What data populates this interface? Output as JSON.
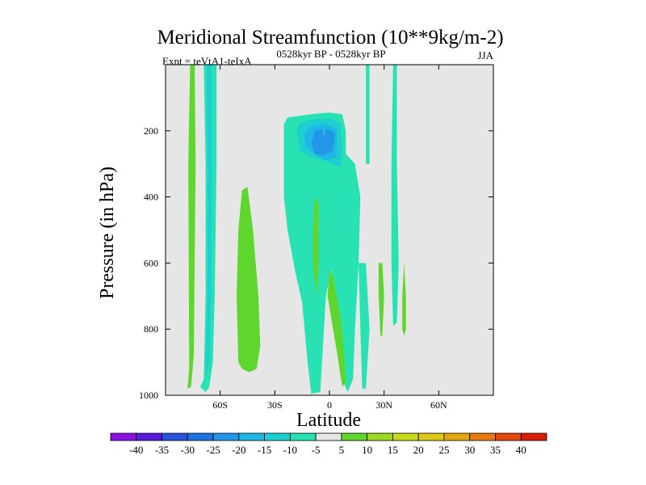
{
  "chart_data": {
    "type": "contour",
    "title": "Meridional Streamfunction (10**9kg/m-2)",
    "left_subtitle": "Expt = teVtA1-teIxA",
    "center_subtitle": "0528kyr BP - 0528kyr BP",
    "right_subtitle": "JJA",
    "xlabel": "Latitude",
    "ylabel": "Pressure (in hPa)",
    "xlim": [
      -90,
      90
    ],
    "ylim": [
      1000,
      0
    ],
    "x_ticks": [
      {
        "value": -60,
        "label": "60S"
      },
      {
        "value": -30,
        "label": "30S"
      },
      {
        "value": 0,
        "label": "0"
      },
      {
        "value": 30,
        "label": "30N"
      },
      {
        "value": 60,
        "label": "60N"
      }
    ],
    "y_ticks": [
      {
        "value": 200,
        "label": "200"
      },
      {
        "value": 400,
        "label": "400"
      },
      {
        "value": 600,
        "label": "600"
      },
      {
        "value": 800,
        "label": "800"
      },
      {
        "value": 1000,
        "label": "1000"
      }
    ],
    "colorbar": {
      "levels": [
        "-40",
        "-35",
        "-30",
        "-25",
        "-20",
        "-15",
        "-10",
        "-5",
        "5",
        "10",
        "15",
        "20",
        "25",
        "30",
        "35",
        "40"
      ],
      "colors": [
        "#8a14e0",
        "#5a1cd8",
        "#2a52d8",
        "#1f73e0",
        "#2396e8",
        "#1fb7e6",
        "#1ecfd2",
        "#28e2b4",
        "#e6e6e6",
        "#5fd62e",
        "#9ad822",
        "#c6d81e",
        "#dcc818",
        "#e6a612",
        "#e67a10",
        "#e24a0c",
        "#d81e08"
      ]
    },
    "regions": [
      {
        "name": "sh-polar-narrow-positive",
        "level": "5",
        "pts": [
          [
            -78,
            980
          ],
          [
            -77,
            920
          ],
          [
            -77.5,
            300
          ],
          [
            -76.5,
            0
          ],
          [
            -74,
            0
          ],
          [
            -73.5,
            300
          ],
          [
            -74.5,
            880
          ],
          [
            -76,
            975
          ]
        ]
      },
      {
        "name": "sh-polar-negative-band",
        "level": "-5",
        "pts": [
          [
            -71,
            975
          ],
          [
            -69,
            950
          ],
          [
            -68,
            700
          ],
          [
            -68,
            300
          ],
          [
            -69,
            0
          ],
          [
            -62,
            0
          ],
          [
            -62,
            300
          ],
          [
            -63,
            700
          ],
          [
            -64,
            900
          ],
          [
            -66,
            975
          ],
          [
            -68,
            990
          ]
        ]
      },
      {
        "name": "sh-polar-negative-core",
        "level": "-10",
        "pts": [
          [
            -68,
            950
          ],
          [
            -67,
            700
          ],
          [
            -67,
            300
          ],
          [
            -67.5,
            0
          ],
          [
            -65,
            0
          ],
          [
            -64.5,
            300
          ],
          [
            -65,
            700
          ],
          [
            -66,
            900
          ]
        ]
      },
      {
        "name": "sh-midlat-positive",
        "level": "5",
        "pts": [
          [
            -50,
            900
          ],
          [
            -51,
            700
          ],
          [
            -50,
            500
          ],
          [
            -48,
            380
          ],
          [
            -45,
            370
          ],
          [
            -42,
            500
          ],
          [
            -39,
            700
          ],
          [
            -38,
            850
          ],
          [
            -40,
            920
          ],
          [
            -44,
            930
          ],
          [
            -48,
            920
          ]
        ]
      },
      {
        "name": "tropical-negative-cell",
        "level": "-5",
        "pts": [
          [
            -25,
            400
          ],
          [
            -25,
            180
          ],
          [
            -23,
            160
          ],
          [
            -10,
            150
          ],
          [
            0,
            145
          ],
          [
            7,
            150
          ],
          [
            9,
            200
          ],
          [
            9,
            270
          ],
          [
            14,
            300
          ],
          [
            17,
            400
          ],
          [
            16,
            600
          ],
          [
            14,
            800
          ],
          [
            13,
            950
          ],
          [
            10,
            990
          ],
          [
            6,
            940
          ],
          [
            3,
            800
          ],
          [
            1,
            620
          ],
          [
            -2,
            700
          ],
          [
            -5,
            990
          ],
          [
            -10,
            995
          ],
          [
            -12,
            900
          ],
          [
            -15,
            720
          ],
          [
            -19,
            620
          ],
          [
            -23,
            500
          ]
        ]
      },
      {
        "name": "tropical-negative-band2",
        "level": "-10",
        "pts": [
          [
            -18,
            200
          ],
          [
            -16,
            175
          ],
          [
            -8,
            165
          ],
          [
            0,
            162
          ],
          [
            6,
            175
          ],
          [
            7,
            260
          ],
          [
            6,
            310
          ],
          [
            -2,
            290
          ],
          [
            -10,
            280
          ],
          [
            -16,
            260
          ]
        ]
      },
      {
        "name": "tropical-negative-band3",
        "level": "-15",
        "pts": [
          [
            -14,
            210
          ],
          [
            -10,
            185
          ],
          [
            -2,
            180
          ],
          [
            4,
            195
          ],
          [
            4,
            280
          ],
          [
            -2,
            290
          ],
          [
            -8,
            270
          ],
          [
            -13,
            250
          ]
        ]
      },
      {
        "name": "tropical-negative-core",
        "level": "-20",
        "pts": [
          [
            -10,
            240
          ],
          [
            -8,
            200
          ],
          [
            -4,
            195
          ],
          [
            -3,
            225
          ],
          [
            -2,
            195
          ],
          [
            3,
            205
          ],
          [
            2,
            260
          ],
          [
            -4,
            275
          ],
          [
            -8,
            270
          ]
        ]
      },
      {
        "name": "tropical-positive-lobe",
        "level": "5",
        "pts": [
          [
            -1,
            700
          ],
          [
            0,
            620
          ],
          [
            2,
            640
          ],
          [
            4,
            700
          ],
          [
            6,
            760
          ],
          [
            8,
            860
          ],
          [
            9,
            960
          ],
          [
            7,
            975
          ],
          [
            5,
            900
          ],
          [
            2,
            800
          ]
        ]
      },
      {
        "name": "tropical-positive-strip",
        "level": "5",
        "pts": [
          [
            -9,
            500
          ],
          [
            -8,
            400
          ],
          [
            -6,
            420
          ],
          [
            -6,
            600
          ],
          [
            -7,
            700
          ],
          [
            -9,
            620
          ]
        ]
      },
      {
        "name": "nh-upper-negative-filament",
        "level": "-5",
        "pts": [
          [
            20,
            300
          ],
          [
            20,
            0
          ],
          [
            22,
            0
          ],
          [
            22,
            300
          ]
        ]
      },
      {
        "name": "nh-upper-negative-filament2",
        "level": "-5",
        "pts": [
          [
            34,
            600
          ],
          [
            34,
            300
          ],
          [
            35,
            0
          ],
          [
            37,
            0
          ],
          [
            37,
            300
          ],
          [
            38,
            600
          ],
          [
            37,
            780
          ],
          [
            35,
            790
          ]
        ]
      },
      {
        "name": "nh-lower-negative",
        "level": "-5",
        "pts": [
          [
            16,
            600
          ],
          [
            17,
            800
          ],
          [
            18,
            980
          ],
          [
            20,
            980
          ],
          [
            22,
            800
          ],
          [
            20,
            600
          ]
        ]
      },
      {
        "name": "nh-positive-strip",
        "level": "5",
        "pts": [
          [
            27,
            700
          ],
          [
            27,
            600
          ],
          [
            29,
            600
          ],
          [
            30,
            700
          ],
          [
            29,
            820
          ],
          [
            28,
            820
          ]
        ]
      },
      {
        "name": "nh-positive-strip2",
        "level": "5",
        "pts": [
          [
            40,
            800
          ],
          [
            40,
            700
          ],
          [
            41,
            600
          ],
          [
            42,
            700
          ],
          [
            42,
            800
          ],
          [
            41,
            820
          ]
        ]
      }
    ]
  }
}
